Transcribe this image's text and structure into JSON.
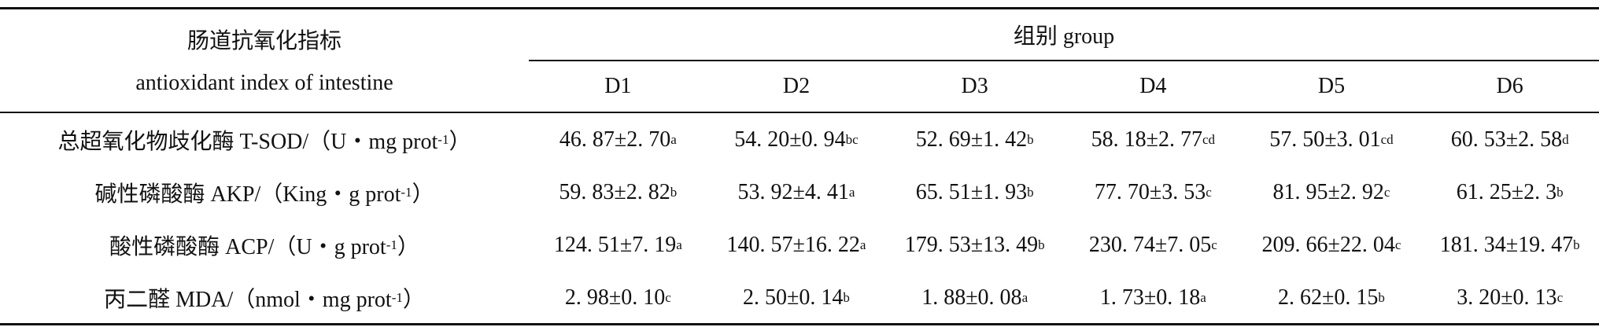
{
  "table": {
    "header": {
      "index_cn": "肠道抗氧化指标",
      "index_en": "antioxidant index of intestine",
      "group": "组别 group",
      "groups": [
        "D1",
        "D2",
        "D3",
        "D4",
        "D5",
        "D6"
      ]
    },
    "rows": [
      {
        "label": "总超氧化物歧化酶 T-SOD/（U・mg prot",
        "label_sup": "-1",
        "label_end": "）",
        "cells": [
          {
            "text": "46. 87±2. 70",
            "sup": "a"
          },
          {
            "text": "54. 20±0. 94",
            "sup": "bc"
          },
          {
            "text": "52. 69±1. 42",
            "sup": "b"
          },
          {
            "text": "58. 18±2. 77",
            "sup": "cd"
          },
          {
            "text": "57. 50±3. 01",
            "sup": "cd"
          },
          {
            "text": "60. 53±2. 58",
            "sup": "d"
          }
        ]
      },
      {
        "label": "碱性磷酸酶 AKP/（King・g prot",
        "label_sup": "-1",
        "label_end": "）",
        "cells": [
          {
            "text": "59. 83±2. 82",
            "sup": "b"
          },
          {
            "text": "53. 92±4. 41",
            "sup": "a"
          },
          {
            "text": "65. 51±1. 93",
            "sup": "b"
          },
          {
            "text": "77. 70±3. 53",
            "sup": "c"
          },
          {
            "text": "81. 95±2. 92",
            "sup": "c"
          },
          {
            "text": "61. 25±2. 3",
            "sup": "b"
          }
        ]
      },
      {
        "label": "酸性磷酸酶 ACP/（U・g prot",
        "label_sup": "-1",
        "label_end": "）",
        "cells": [
          {
            "text": "124. 51±7. 19",
            "sup": "a"
          },
          {
            "text": "140. 57±16. 22",
            "sup": "a"
          },
          {
            "text": "179. 53±13. 49",
            "sup": "b"
          },
          {
            "text": "230. 74±7. 05",
            "sup": "c"
          },
          {
            "text": "209. 66±22. 04",
            "sup": "c"
          },
          {
            "text": "181. 34±19. 47",
            "sup": "b"
          }
        ]
      },
      {
        "label": "丙二醛 MDA/（nmol・mg prot",
        "label_sup": "-1",
        "label_end": "）",
        "cells": [
          {
            "text": "2. 98±0. 10",
            "sup": "c"
          },
          {
            "text": "2. 50±0. 14",
            "sup": "b"
          },
          {
            "text": "1. 88±0. 08",
            "sup": "a"
          },
          {
            "text": "1. 73±0. 18",
            "sup": "a"
          },
          {
            "text": "2. 62±0. 15",
            "sup": "b"
          },
          {
            "text": "3. 20±0. 13",
            "sup": "c"
          }
        ]
      }
    ]
  }
}
